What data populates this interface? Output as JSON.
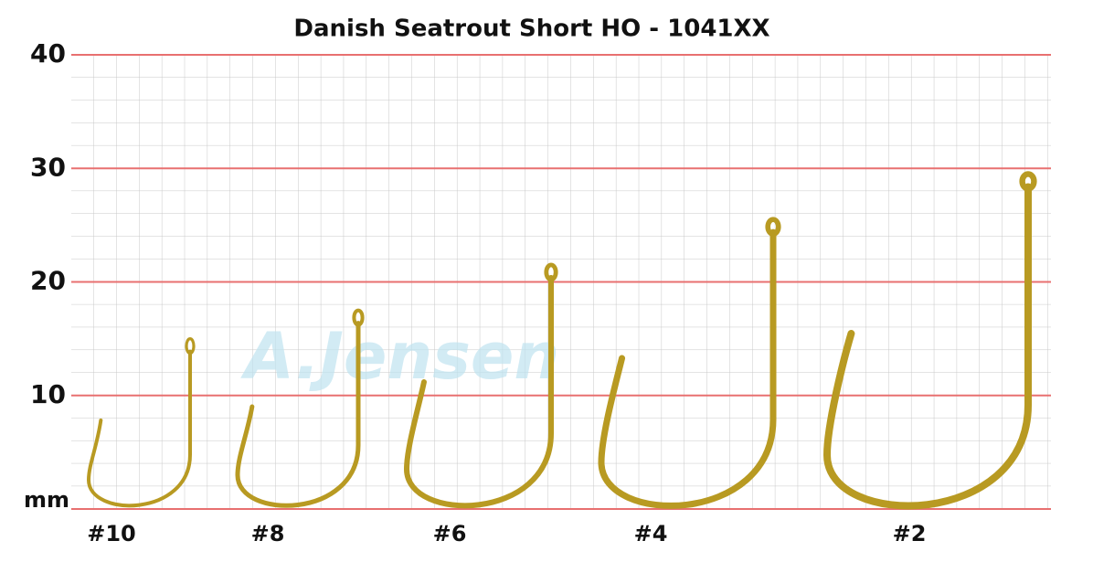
{
  "chart_data": {
    "type": "hook",
    "title": "Danish Seatrout Short HO - 1041XX",
    "y_label": "mm",
    "watermark": "A.Jensen",
    "categories": [
      "#10",
      "#8",
      "#6",
      "#4",
      "#2"
    ],
    "values": [
      15,
      17.5,
      21.5,
      25.5,
      29.5
    ],
    "color": "#b89a22",
    "ylim": [
      0,
      40
    ],
    "yticks": [
      10,
      20,
      30,
      40
    ],
    "grid": true
  }
}
